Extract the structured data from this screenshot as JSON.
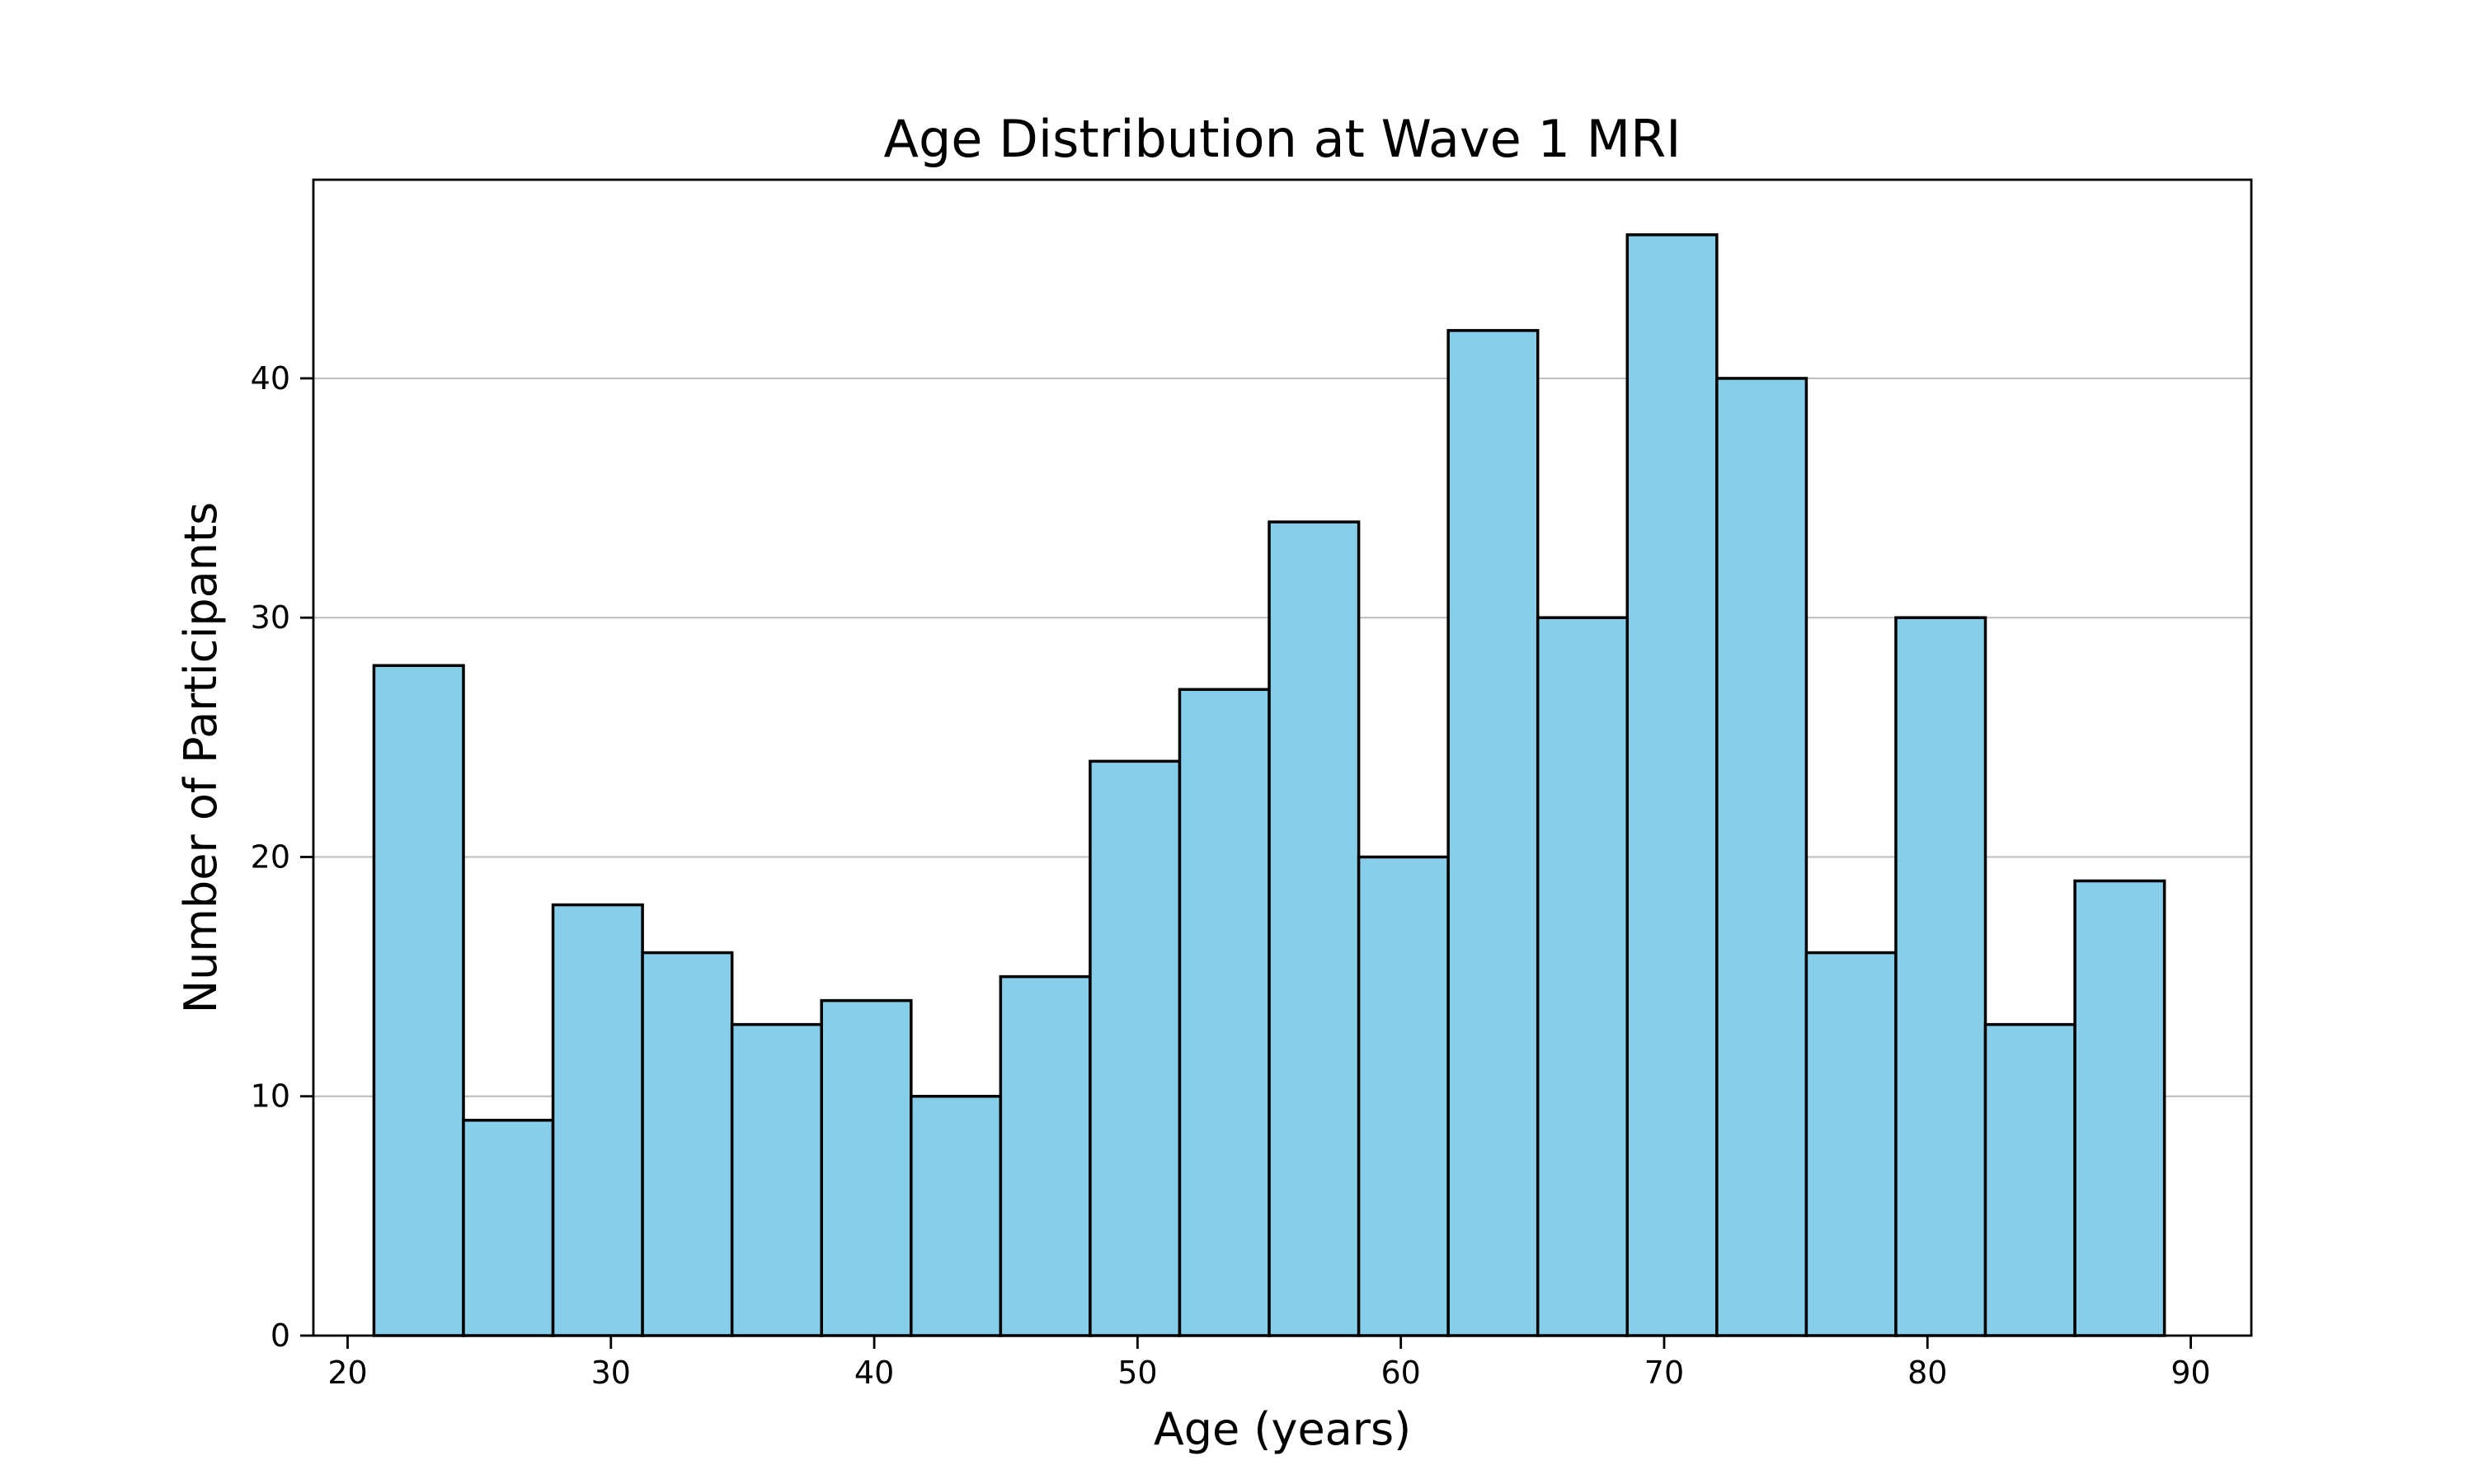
{
  "chart_data": {
    "type": "bar",
    "title": "Age Distribution at Wave 1 MRI",
    "xlabel": "Age (years)",
    "ylabel": "Number of Participants",
    "xlim": [
      18.7,
      92.3
    ],
    "ylim": [
      0,
      48.3
    ],
    "x_ticks": [
      20,
      30,
      40,
      50,
      60,
      70,
      80,
      90
    ],
    "y_ticks": [
      0,
      10,
      20,
      30,
      40
    ],
    "grid": "horizontal",
    "bin_edges": [
      21,
      24.4,
      27.8,
      31.2,
      34.6,
      38,
      41.4,
      44.8,
      48.2,
      51.6,
      55,
      58.4,
      61.8,
      65.2,
      68.6,
      72,
      75.4,
      78.8,
      82.2,
      85.6,
      89
    ],
    "values": [
      28,
      9,
      18,
      16,
      13,
      14,
      10,
      15,
      24,
      27,
      34,
      20,
      42,
      30,
      46,
      40,
      16,
      30,
      13,
      19
    ],
    "bar_color": "#87CEEB",
    "edge_color": "#000000"
  }
}
